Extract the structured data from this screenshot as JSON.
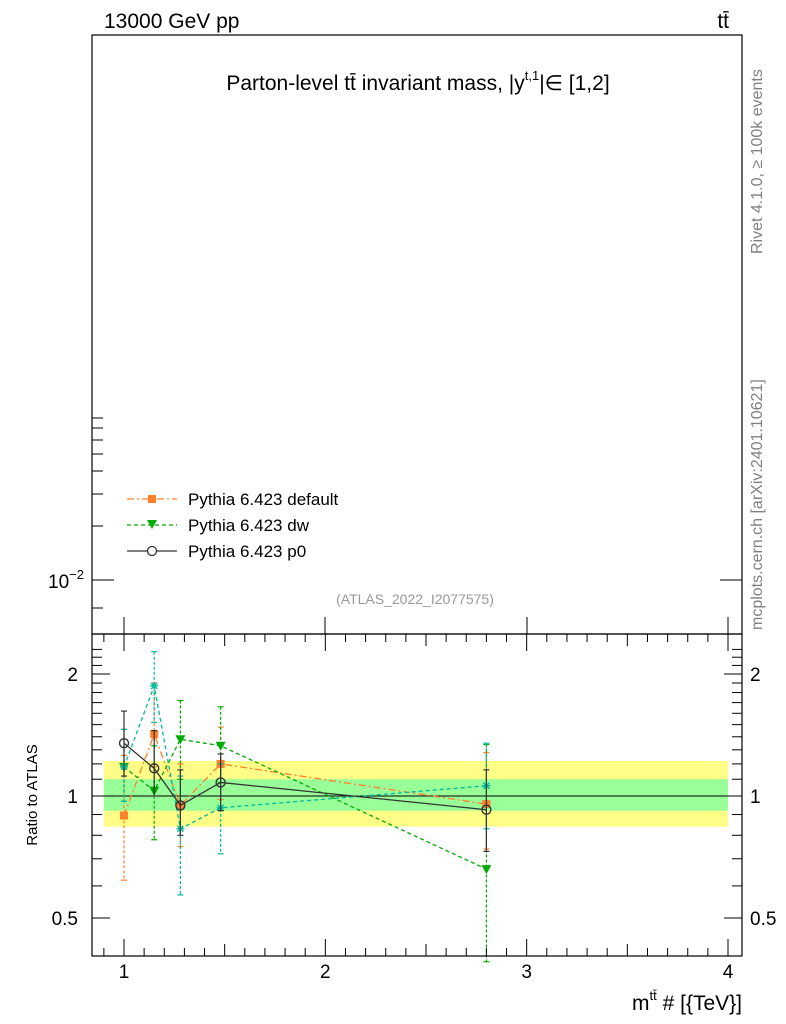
{
  "header": {
    "beam": "13000 GeV pp",
    "process": "tt̄"
  },
  "side_labels": {
    "rivet": "Rivet 4.1.0, ≥ 100k events",
    "source": "mcplots.cern.ch [arXiv:2401.10621]"
  },
  "chart_data": [
    {
      "type": "line",
      "panel": "main",
      "title": "Parton-level tt̄ invariant mass, |y^{t,1}| ∈ [1,2]",
      "title_parts": {
        "pre": "Parton-level ",
        "tt": "tt̄",
        "mid": " invariant mass, |y",
        "sup": "t,1",
        "post": "|∈ [1,2]"
      },
      "analysis_label": "(ATLAS_2022_I2077575)",
      "yscale": "log",
      "y_tick_label": "10^{-2}",
      "y_tick_parts": {
        "base": "10",
        "exp": "−2"
      },
      "legend_position": "lower-left",
      "series": [
        {
          "name": "Pythia 6.423 default",
          "color": "#ff7f2a",
          "marker": "square"
        },
        {
          "name": "Pythia 6.423 dw",
          "color": "#00aa00",
          "marker": "triangle-down"
        },
        {
          "name": "Pythia 6.423 p0",
          "color": "#333333",
          "marker": "open-circle"
        }
      ]
    },
    {
      "type": "line",
      "panel": "ratio",
      "xlabel": "m^{tt̄} # [{TeV}]",
      "xlabel_parts": {
        "pre": "m",
        "sup": "tt̄",
        "post": " # [{TeV}]"
      },
      "ylabel": "Ratio to ATLAS",
      "xlim": [
        0.85,
        4.05
      ],
      "ylim": [
        0.41,
        2.4
      ],
      "x_ticks": [
        1,
        2,
        3,
        4
      ],
      "x_tick_labels": [
        "1",
        "2",
        "3",
        "4"
      ],
      "y_ticks": [
        0.5,
        1,
        2
      ],
      "y_tick_labels": [
        "0.5",
        "1",
        "2"
      ],
      "bands": [
        {
          "name": "data_outer",
          "color": "#ffff88",
          "segments": [
            {
              "x": [
                0.9,
                1.6
              ],
              "lo": 0.84,
              "hi": 1.22
            },
            {
              "x": [
                1.6,
                4.0
              ],
              "lo": 0.84,
              "hi": 1.22
            }
          ]
        },
        {
          "name": "data_inner",
          "color": "#99ff99",
          "segments": [
            {
              "x": [
                0.9,
                1.6
              ],
              "lo": 0.92,
              "hi": 1.1
            },
            {
              "x": [
                1.6,
                4.0
              ],
              "lo": 0.92,
              "hi": 1.1
            }
          ]
        }
      ],
      "series": [
        {
          "name": "Pythia 6.423 default",
          "color": "#ff7f2a",
          "dash": "7,3,2,3",
          "marker": "square",
          "x": [
            1.0,
            1.15,
            1.28,
            1.48,
            2.8
          ],
          "y": [
            0.895,
            1.42,
            0.948,
            1.2,
            0.955
          ],
          "yerr": [
            [
              0.62,
              1.26
            ],
            [
              1.18,
              1.9
            ],
            [
              0.75,
              1.2
            ],
            [
              0.98,
              1.48
            ],
            [
              0.74,
              1.28
            ]
          ]
        },
        {
          "name": "Pythia 6.423 dw",
          "color": "#00aa00",
          "dash": "4,3",
          "marker": "triangle-down",
          "x": [
            1.0,
            1.15,
            1.28,
            1.48,
            2.8
          ],
          "y": [
            1.18,
            1.03,
            1.38,
            1.33,
            0.66
          ],
          "yerr": [
            [
              0.97,
              1.46
            ],
            [
              0.78,
              1.33
            ],
            [
              1.1,
              1.72
            ],
            [
              1.08,
              1.66
            ],
            [
              0.39,
              1.34
            ]
          ]
        },
        {
          "name": "ATLAS_2022_I2077575_points",
          "color": "#00bb99",
          "dash": "4,3",
          "marker": "star",
          "x": [
            1.0,
            1.15,
            1.28,
            1.48,
            2.8
          ],
          "y": [
            1.18,
            1.87,
            0.83,
            0.935,
            1.06
          ],
          "yerr": [
            [
              0.97,
              1.46
            ],
            [
              1.52,
              2.27
            ],
            [
              0.57,
              1.12
            ],
            [
              0.72,
              1.2
            ],
            [
              0.83,
              1.35
            ]
          ]
        },
        {
          "name": "Pythia 6.423 p0",
          "color": "#333333",
          "dash": "",
          "marker": "open-circle",
          "x": [
            1.0,
            1.15,
            1.28,
            1.48,
            2.8
          ],
          "y": [
            1.35,
            1.17,
            0.948,
            1.08,
            0.925
          ],
          "yerr": [
            [
              1.12,
              1.62
            ],
            [
              1.0,
              1.45
            ],
            [
              0.8,
              1.16
            ],
            [
              0.92,
              1.27
            ],
            [
              0.73,
              1.16
            ]
          ]
        }
      ]
    }
  ]
}
